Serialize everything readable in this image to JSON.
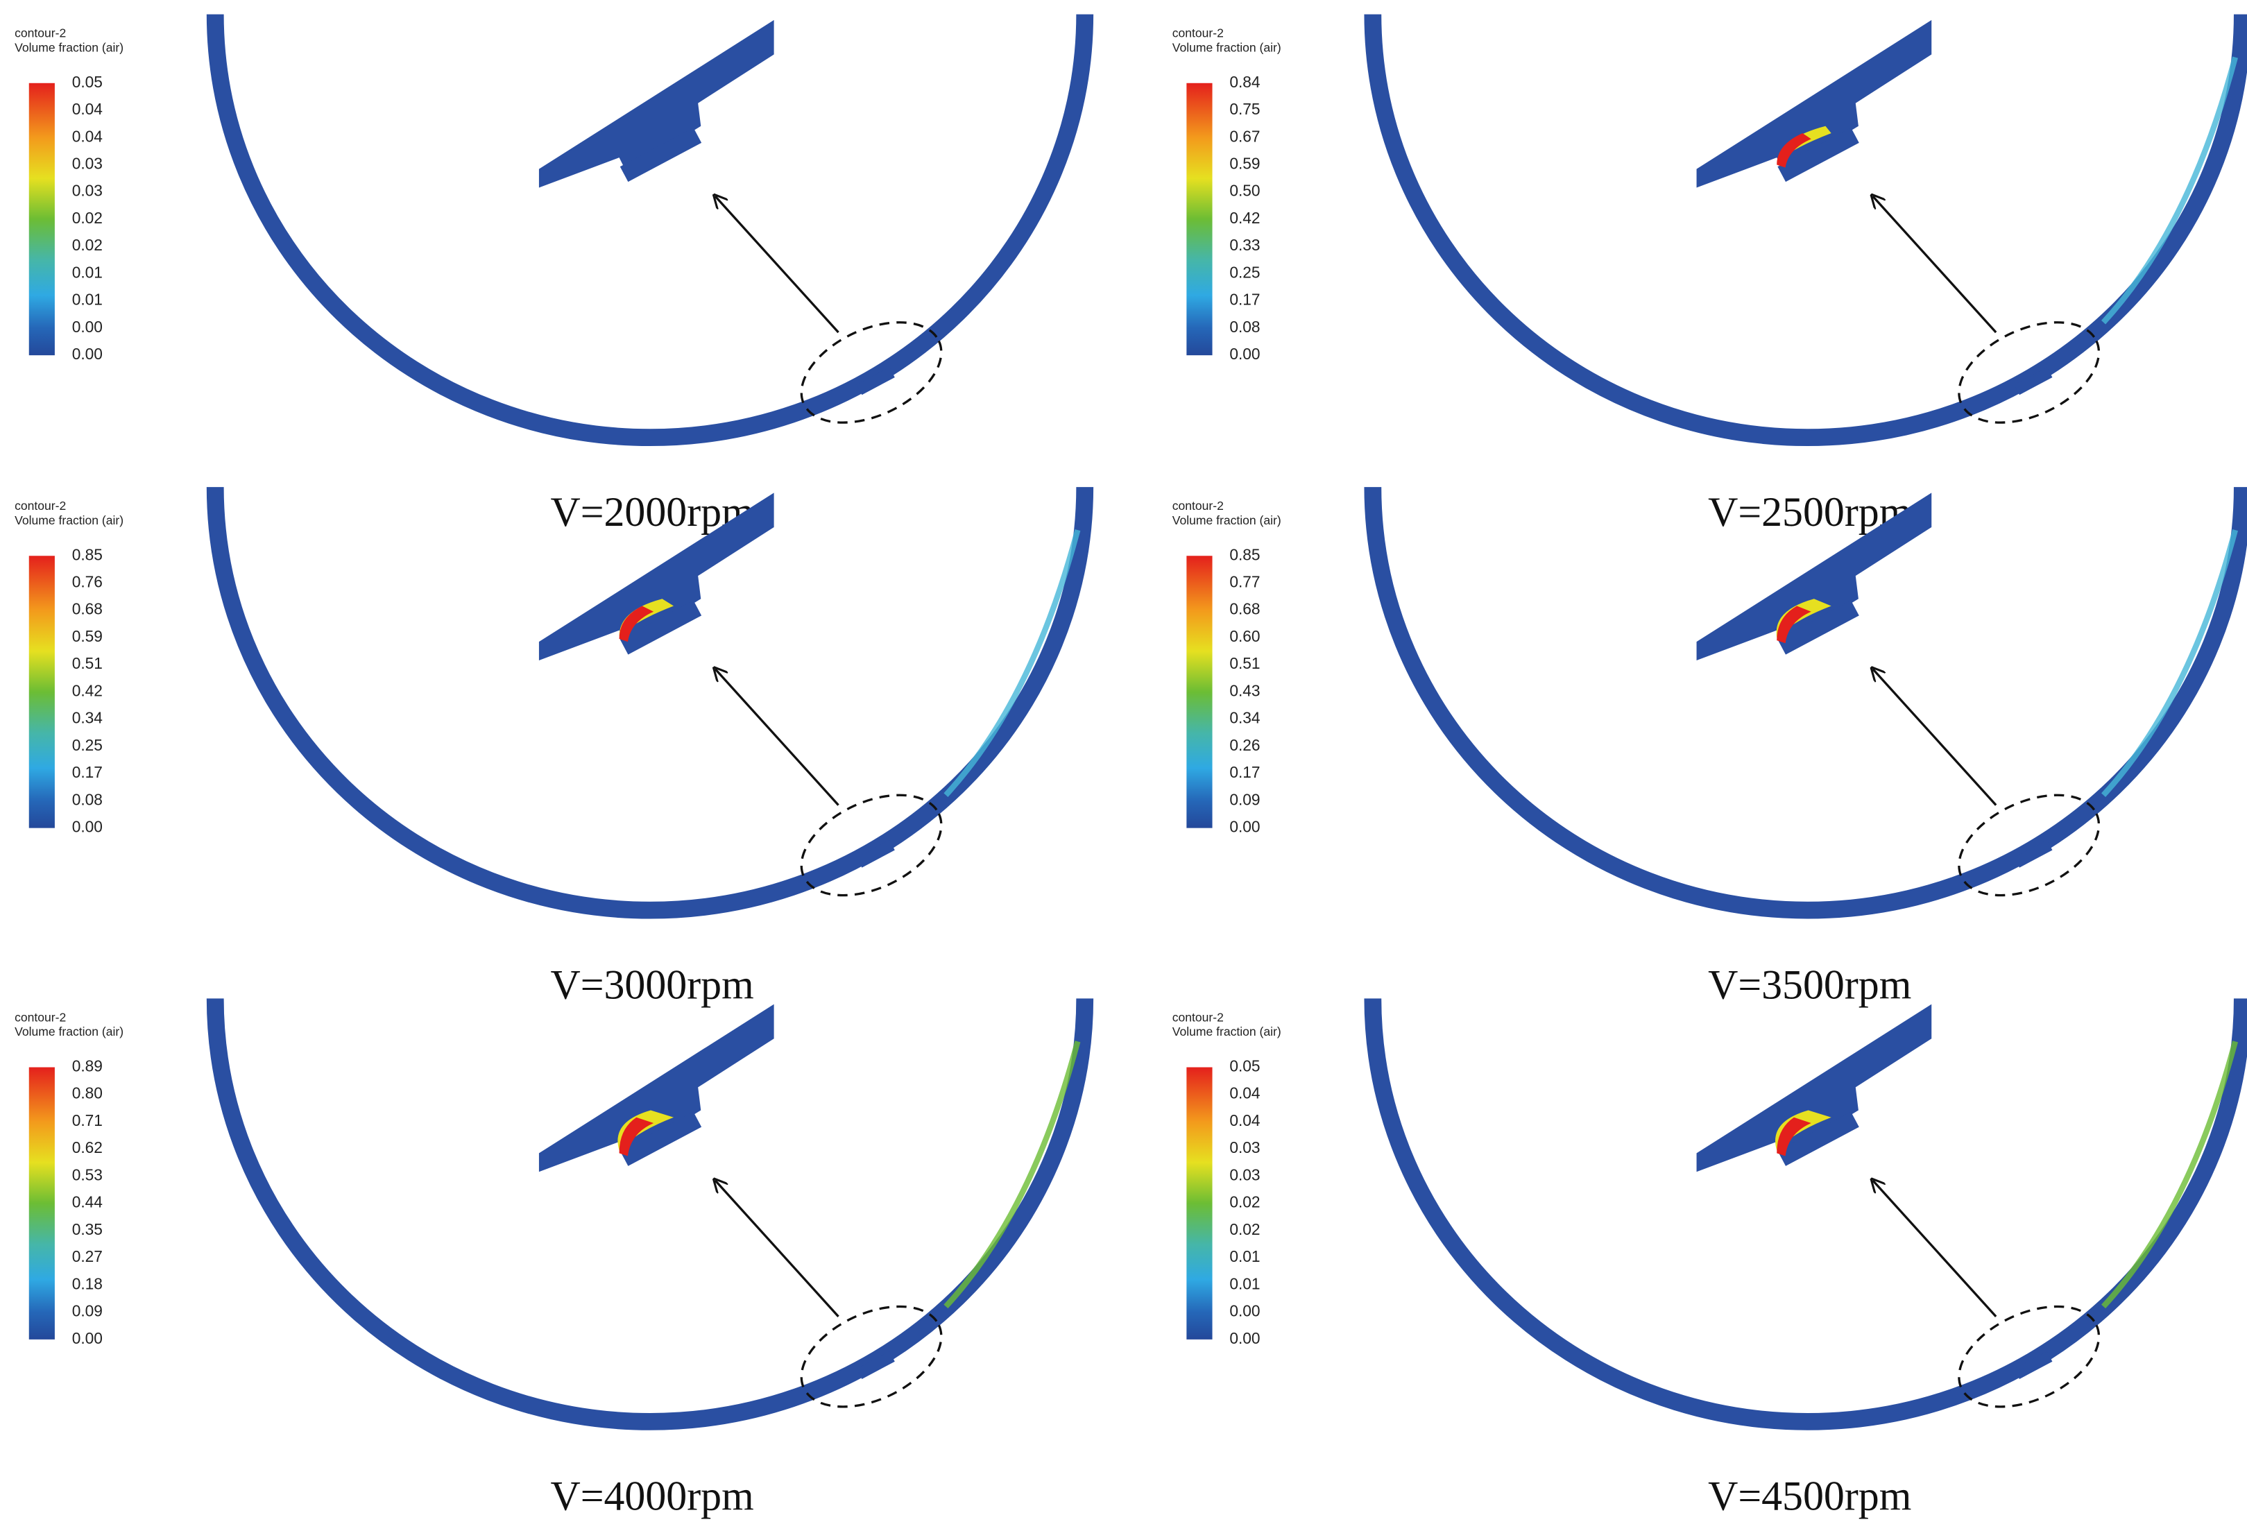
{
  "panels": [
    {
      "legend_title": "contour-2",
      "legend_subtitle": "Volume fraction (air)",
      "legend_labels": [
        "0.05",
        "0.04",
        "0.04",
        "0.03",
        "0.03",
        "0.02",
        "0.02",
        "0.01",
        "0.01",
        "0.00",
        "0.00"
      ],
      "caption": "V=2000rpm"
    },
    {
      "legend_title": "contour-2",
      "legend_subtitle": "Volume fraction (air)",
      "legend_labels": [
        "0.84",
        "0.75",
        "0.67",
        "0.59",
        "0.50",
        "0.42",
        "0.33",
        "0.25",
        "0.17",
        "0.08",
        "0.00"
      ],
      "caption": "V=2500rpm"
    },
    {
      "legend_title": "contour-2",
      "legend_subtitle": "Volume fraction (air)",
      "legend_labels": [
        "0.85",
        "0.76",
        "0.68",
        "0.59",
        "0.51",
        "0.42",
        "0.34",
        "0.25",
        "0.17",
        "0.08",
        "0.00"
      ],
      "caption": "V=3000rpm"
    },
    {
      "legend_title": "contour-2",
      "legend_subtitle": "Volume fraction (air)",
      "legend_labels": [
        "0.85",
        "0.77",
        "0.68",
        "0.60",
        "0.51",
        "0.43",
        "0.34",
        "0.26",
        "0.17",
        "0.09",
        "0.00"
      ],
      "caption": "V=3500rpm"
    },
    {
      "legend_title": "contour-2",
      "legend_subtitle": "Volume fraction (air)",
      "legend_labels": [
        "0.89",
        "0.80",
        "0.71",
        "0.62",
        "0.53",
        "0.44",
        "0.35",
        "0.27",
        "0.18",
        "0.09",
        "0.00"
      ],
      "caption": "V=4000rpm"
    },
    {
      "legend_title": "contour-2",
      "legend_subtitle": "Volume fraction (air)",
      "legend_labels": [
        "0.05",
        "0.04",
        "0.04",
        "0.03",
        "0.03",
        "0.02",
        "0.02",
        "0.01",
        "0.01",
        "0.00",
        "0.00"
      ],
      "caption": "V=4500rpm"
    }
  ]
}
